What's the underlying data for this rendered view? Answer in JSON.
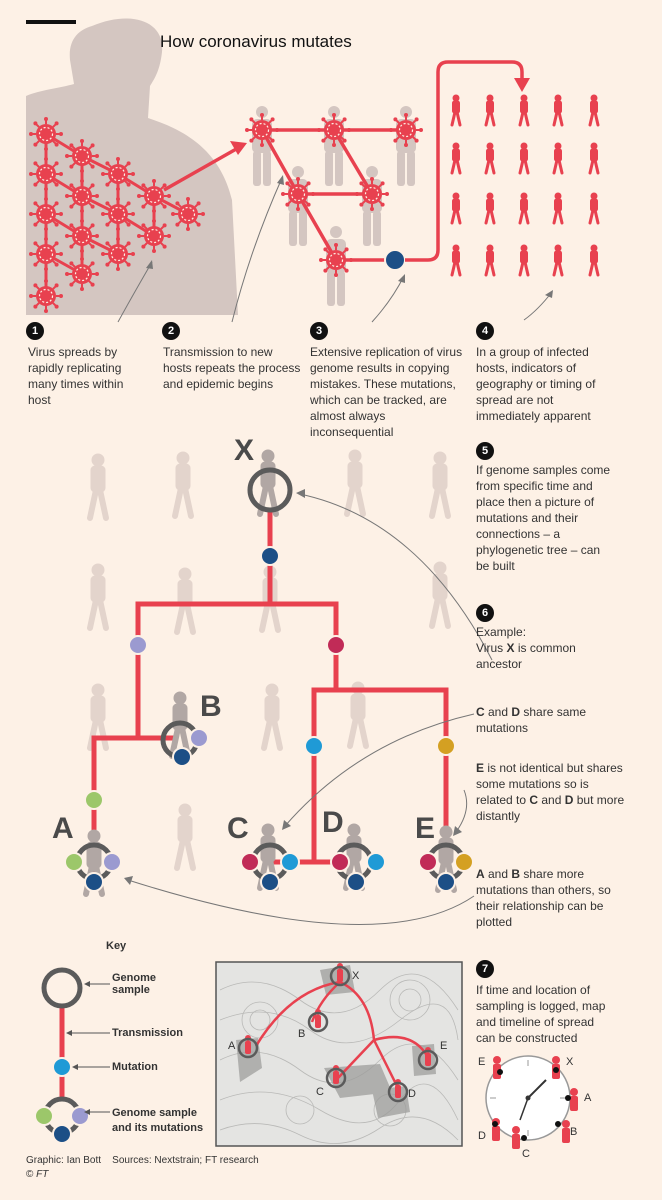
{
  "title": "How coronavirus mutates",
  "steps": [
    {
      "num": "1",
      "text": "Virus spreads by rapidly replicating many times within host"
    },
    {
      "num": "2",
      "text": "Transmission to new hosts repeats the process and epidemic begins"
    },
    {
      "num": "3",
      "text": "Extensive replication of virus genome results in copying mistakes. These mutations, which can be tracked, are almost always inconsequential"
    },
    {
      "num": "4",
      "text": "In a group of infected hosts, indicators of geography or timing of spread are not immediately apparent"
    },
    {
      "num": "5",
      "text": "If genome samples come from specific time and place then a picture of mutations and their connections – a phylogenetic tree – can be built"
    },
    {
      "num": "6",
      "text_intro": "Example:",
      "text_pre": "Virus ",
      "text_bold": "X",
      "text_post": " is common ancestor"
    },
    {
      "num": "7",
      "text": "If time and location of sampling is logged, map and timeline of spread can be constructed"
    }
  ],
  "notes": {
    "cd": {
      "b1": "C",
      "mid": " and ",
      "b2": "D",
      "post": " share same mutations"
    },
    "e": {
      "b1": "E",
      "mid": " is not identical but shares some mutations so is related to ",
      "b2": "C",
      "and": " and ",
      "b3": "D",
      "post": " but more distantly"
    },
    "ab": {
      "b1": "A",
      "mid": " and ",
      "b2": "B",
      "post": " share more mutations than others, so their relationship can be plotted"
    }
  },
  "tree_labels": {
    "x": "X",
    "a": "A",
    "b": "B",
    "c": "C",
    "d": "D",
    "e": "E"
  },
  "map_labels": [
    "X",
    "A",
    "B",
    "C",
    "D",
    "E"
  ],
  "clock_labels": [
    "E",
    "X",
    "A",
    "B",
    "C",
    "D"
  ],
  "key": {
    "title": "Key",
    "genome_sample": "Genome sample",
    "transmission": "Transmission",
    "mutation": "Mutation",
    "sample_mutations": "Genome sample and its mutations"
  },
  "credits": {
    "graphic": "Graphic: Ian Bott",
    "sources": "Sources: Nextstrain; FT research",
    "ft": "FT"
  },
  "colors": {
    "background": "#fdf1e6",
    "virus_red": "#e8414f",
    "silhouette": "#d4c6c1",
    "mutation_dark_blue": "#1c4f86",
    "mutation_lavender": "#9b9ad0",
    "mutation_crimson": "#c12b57",
    "mutation_light_blue": "#1f9ad6",
    "mutation_gold": "#d4a022",
    "mutation_green": "#9cc76a",
    "ring_grey": "#5b5b5b"
  }
}
